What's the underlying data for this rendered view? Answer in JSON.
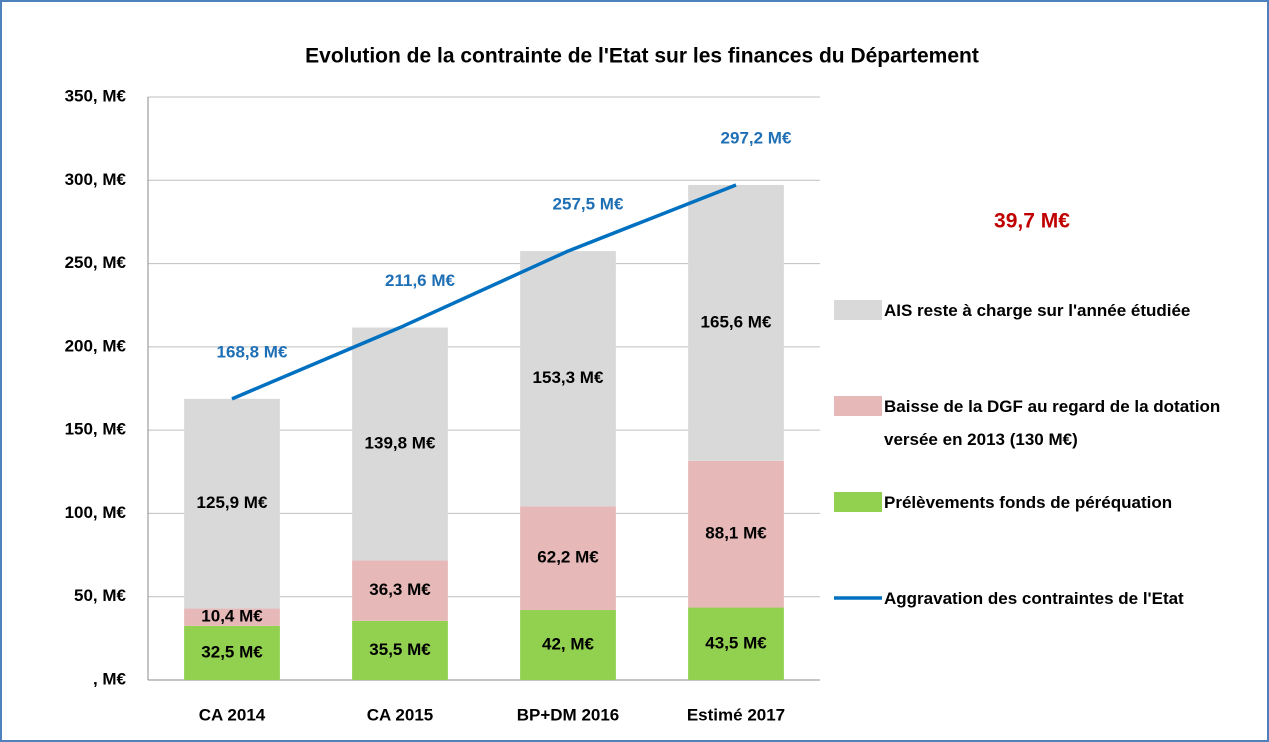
{
  "chart_data": {
    "type": "bar",
    "title": "Evolution de la contrainte de l'Etat sur les finances du Département",
    "categories": [
      "CA 2014",
      "CA 2015",
      "BP+DM 2016",
      "Estimé 2017"
    ],
    "stacked": true,
    "series": [
      {
        "name": "Prélèvements fonds de péréquation",
        "color": "#92d050",
        "values": [
          32.5,
          35.5,
          42,
          43.5
        ],
        "value_labels": [
          "32,5 M€",
          "35,5 M€",
          "42, M€",
          "43,5 M€"
        ]
      },
      {
        "name": "Baisse de la DGF au regard de la dotation versée en 2013 (130 M€)",
        "color": "#e6b9b8",
        "values": [
          10.4,
          36.3,
          62.2,
          88.1
        ],
        "value_labels": [
          "10,4 M€",
          "36,3 M€",
          "62,2 M€",
          "88,1 M€"
        ]
      },
      {
        "name": "AIS reste à charge sur l'année étudiée",
        "color": "#d9d9d9",
        "values": [
          125.9,
          139.8,
          153.3,
          165.6
        ],
        "value_labels": [
          "125,9 M€",
          "139,8 M€",
          "153,3 M€",
          "165,6 M€"
        ]
      },
      {
        "name": "Aggravation  des contraintes de l'Etat",
        "type": "line",
        "color": "#0070c0",
        "values": [
          168.8,
          211.6,
          257.5,
          297.2
        ],
        "value_labels": [
          "168,8 M€",
          "211,6 M€",
          "257,5 M€",
          "297,2 M€"
        ]
      }
    ],
    "ylim": [
      0,
      350
    ],
    "yticks": [
      {
        "value": 0,
        "label": ", M€"
      },
      {
        "value": 50,
        "label": "50, M€"
      },
      {
        "value": 100,
        "label": "100, M€"
      },
      {
        "value": 150,
        "label": "150, M€"
      },
      {
        "value": 200,
        "label": "200, M€"
      },
      {
        "value": 250,
        "label": "250, M€"
      },
      {
        "value": 300,
        "label": "300, M€"
      },
      {
        "value": 350,
        "label": "350, M€"
      }
    ],
    "grid": true,
    "legend": "right",
    "annotations": [
      {
        "text": "39,7 M€",
        "color": "#c00000"
      }
    ]
  }
}
